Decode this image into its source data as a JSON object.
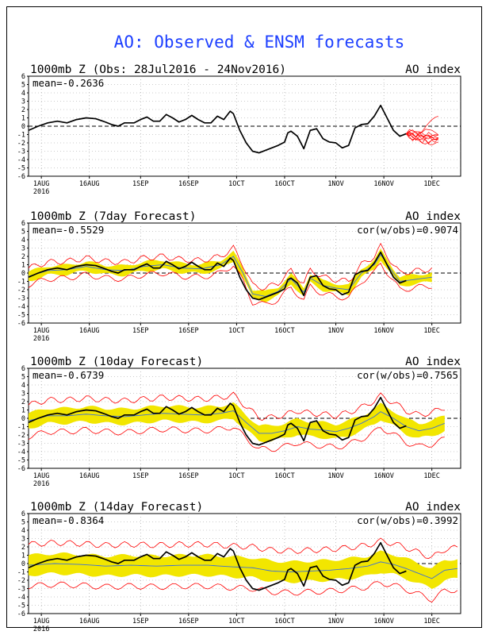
{
  "title": "AO: Observed & ENSM forecasts",
  "colors": {
    "title": "#1e40ff",
    "band": "#f2e600",
    "member": "#ff0000",
    "obs": "#000000",
    "mean": "#3b6fd8"
  },
  "x_ticks": [
    {
      "day": 4,
      "label": "1AUG",
      "sub": "2016"
    },
    {
      "day": 19,
      "label": "16AUG"
    },
    {
      "day": 35,
      "label": "1SEP"
    },
    {
      "day": 50,
      "label": "16SEP"
    },
    {
      "day": 65,
      "label": "1OCT"
    },
    {
      "day": 80,
      "label": "16OCT"
    },
    {
      "day": 96,
      "label": "1NOV"
    },
    {
      "day": 111,
      "label": "16NOV"
    },
    {
      "day": 126,
      "label": "1DEC"
    }
  ],
  "chart_data": [
    {
      "type": "line",
      "title": "1000mb Z (Obs: 28Jul2016 - 24Nov2016)",
      "right_label": "AO index",
      "stat": "mean=-0.2636",
      "ylim": [
        -6,
        6
      ],
      "y_ticks": [
        6,
        5,
        4,
        3,
        2,
        1,
        0,
        -1,
        -2,
        -3,
        -4,
        -5,
        -6
      ],
      "observed": [
        [
          0,
          -0.5
        ],
        [
          3,
          0
        ],
        [
          6,
          0.4
        ],
        [
          9,
          0.6
        ],
        [
          12,
          0.4
        ],
        [
          15,
          0.8
        ],
        [
          18,
          1.0
        ],
        [
          21,
          0.9
        ],
        [
          24,
          0.5
        ],
        [
          26,
          0.2
        ],
        [
          28,
          0.0
        ],
        [
          30,
          0.4
        ],
        [
          33,
          0.4
        ],
        [
          35,
          0.8
        ],
        [
          37,
          1.1
        ],
        [
          39,
          0.6
        ],
        [
          41,
          0.6
        ],
        [
          43,
          1.4
        ],
        [
          45,
          1.0
        ],
        [
          47,
          0.5
        ],
        [
          49,
          0.8
        ],
        [
          51,
          1.3
        ],
        [
          53,
          0.8
        ],
        [
          55,
          0.4
        ],
        [
          57,
          0.4
        ],
        [
          59,
          1.2
        ],
        [
          61,
          0.8
        ],
        [
          63,
          1.8
        ],
        [
          64,
          1.5
        ],
        [
          66,
          -0.5
        ],
        [
          68,
          -2
        ],
        [
          70,
          -3.0
        ],
        [
          72,
          -3.2
        ],
        [
          74,
          -2.9
        ],
        [
          76,
          -2.6
        ],
        [
          78,
          -2.3
        ],
        [
          80,
          -1.9
        ],
        [
          81,
          -0.8
        ],
        [
          82,
          -0.6
        ],
        [
          84,
          -1.2
        ],
        [
          86,
          -2.7
        ],
        [
          88,
          -0.5
        ],
        [
          90,
          -0.3
        ],
        [
          92,
          -1.5
        ],
        [
          94,
          -1.9
        ],
        [
          96,
          -2.0
        ],
        [
          98,
          -2.6
        ],
        [
          100,
          -2.3
        ],
        [
          102,
          -0.2
        ],
        [
          104,
          0.2
        ],
        [
          106,
          0.3
        ],
        [
          108,
          1.2
        ],
        [
          110,
          2.5
        ],
        [
          112,
          1.0
        ],
        [
          114,
          -0.5
        ],
        [
          116,
          -1.2
        ],
        [
          118,
          -0.9
        ]
      ],
      "members": 10,
      "members_start": [
        118,
        -0.9
      ],
      "members_end_day": 128,
      "members_spread": [
        -3.8,
        2.0
      ]
    },
    {
      "type": "line",
      "title": "1000mb Z (7day Forecast)",
      "right_label": "AO index",
      "stat": "mean=-0.5529",
      "cor": "cor(w/obs)=0.9074",
      "ylim": [
        -6,
        6
      ],
      "y_ticks": [
        6,
        5,
        4,
        3,
        2,
        1,
        0,
        -1,
        -2,
        -3,
        -4,
        -5,
        -6
      ],
      "observed": [
        [
          0,
          -0.5
        ],
        [
          3,
          0
        ],
        [
          6,
          0.4
        ],
        [
          9,
          0.6
        ],
        [
          12,
          0.4
        ],
        [
          15,
          0.8
        ],
        [
          18,
          1.0
        ],
        [
          21,
          0.9
        ],
        [
          24,
          0.5
        ],
        [
          26,
          0.2
        ],
        [
          28,
          0.0
        ],
        [
          30,
          0.4
        ],
        [
          33,
          0.4
        ],
        [
          35,
          0.8
        ],
        [
          37,
          1.1
        ],
        [
          39,
          0.6
        ],
        [
          41,
          0.6
        ],
        [
          43,
          1.4
        ],
        [
          45,
          1.0
        ],
        [
          47,
          0.5
        ],
        [
          49,
          0.8
        ],
        [
          51,
          1.3
        ],
        [
          53,
          0.8
        ],
        [
          55,
          0.4
        ],
        [
          57,
          0.4
        ],
        [
          59,
          1.2
        ],
        [
          61,
          0.8
        ],
        [
          63,
          1.8
        ],
        [
          64,
          1.5
        ],
        [
          66,
          -0.5
        ],
        [
          68,
          -2
        ],
        [
          70,
          -3.0
        ],
        [
          72,
          -3.2
        ],
        [
          74,
          -2.9
        ],
        [
          76,
          -2.6
        ],
        [
          78,
          -2.3
        ],
        [
          80,
          -1.9
        ],
        [
          81,
          -0.8
        ],
        [
          82,
          -0.6
        ],
        [
          84,
          -1.2
        ],
        [
          86,
          -2.7
        ],
        [
          88,
          -0.5
        ],
        [
          90,
          -0.3
        ],
        [
          92,
          -1.5
        ],
        [
          94,
          -1.9
        ],
        [
          96,
          -2.0
        ],
        [
          98,
          -2.6
        ],
        [
          100,
          -2.3
        ],
        [
          102,
          -0.2
        ],
        [
          104,
          0.2
        ],
        [
          106,
          0.3
        ],
        [
          108,
          1.2
        ],
        [
          110,
          2.5
        ],
        [
          112,
          1.0
        ],
        [
          114,
          -0.5
        ],
        [
          116,
          -1.2
        ],
        [
          118,
          -0.9
        ]
      ],
      "forecast_mean": [
        [
          0,
          -0.4
        ],
        [
          6,
          0.3
        ],
        [
          12,
          0.4
        ],
        [
          18,
          0.8
        ],
        [
          24,
          0.4
        ],
        [
          30,
          0.3
        ],
        [
          36,
          0.8
        ],
        [
          42,
          1.0
        ],
        [
          48,
          0.6
        ],
        [
          54,
          0.5
        ],
        [
          60,
          1.0
        ],
        [
          64,
          2.0
        ],
        [
          67,
          0
        ],
        [
          70,
          -2.5
        ],
        [
          74,
          -2.8
        ],
        [
          78,
          -2.2
        ],
        [
          82,
          -0.7
        ],
        [
          86,
          -2.3
        ],
        [
          88,
          -0.6
        ],
        [
          92,
          -1.5
        ],
        [
          96,
          -1.8
        ],
        [
          100,
          -2.0
        ],
        [
          104,
          0
        ],
        [
          108,
          1
        ],
        [
          110,
          2.2
        ],
        [
          114,
          0
        ],
        [
          116,
          -1.0
        ],
        [
          120,
          -0.8
        ],
        [
          126,
          -0.5
        ]
      ],
      "band_halfwidth": 0.55,
      "member_halfwidth": 1.0,
      "forecast_end_day": 126
    },
    {
      "type": "line",
      "title": "1000mb Z (10day Forecast)",
      "right_label": "AO index",
      "stat": "mean=-0.6739",
      "cor": "cor(w/obs)=0.7565",
      "ylim": [
        -6,
        6
      ],
      "y_ticks": [
        6,
        5,
        4,
        3,
        2,
        1,
        0,
        -1,
        -2,
        -3,
        -4,
        -5,
        -6
      ],
      "observed": [
        [
          0,
          -0.5
        ],
        [
          3,
          0
        ],
        [
          6,
          0.4
        ],
        [
          9,
          0.6
        ],
        [
          12,
          0.4
        ],
        [
          15,
          0.8
        ],
        [
          18,
          1.0
        ],
        [
          21,
          0.9
        ],
        [
          24,
          0.5
        ],
        [
          26,
          0.2
        ],
        [
          28,
          0.0
        ],
        [
          30,
          0.4
        ],
        [
          33,
          0.4
        ],
        [
          35,
          0.8
        ],
        [
          37,
          1.1
        ],
        [
          39,
          0.6
        ],
        [
          41,
          0.6
        ],
        [
          43,
          1.4
        ],
        [
          45,
          1.0
        ],
        [
          47,
          0.5
        ],
        [
          49,
          0.8
        ],
        [
          51,
          1.3
        ],
        [
          53,
          0.8
        ],
        [
          55,
          0.4
        ],
        [
          57,
          0.4
        ],
        [
          59,
          1.2
        ],
        [
          61,
          0.8
        ],
        [
          63,
          1.8
        ],
        [
          64,
          1.5
        ],
        [
          66,
          -0.5
        ],
        [
          68,
          -2
        ],
        [
          70,
          -3.0
        ],
        [
          72,
          -3.2
        ],
        [
          74,
          -2.9
        ],
        [
          76,
          -2.6
        ],
        [
          78,
          -2.3
        ],
        [
          80,
          -1.9
        ],
        [
          81,
          -0.8
        ],
        [
          82,
          -0.6
        ],
        [
          84,
          -1.2
        ],
        [
          86,
          -2.7
        ],
        [
          88,
          -0.5
        ],
        [
          90,
          -0.3
        ],
        [
          92,
          -1.5
        ],
        [
          94,
          -1.9
        ],
        [
          96,
          -2.0
        ],
        [
          98,
          -2.6
        ],
        [
          100,
          -2.3
        ],
        [
          102,
          -0.2
        ],
        [
          104,
          0.2
        ],
        [
          106,
          0.3
        ],
        [
          108,
          1.2
        ],
        [
          110,
          2.5
        ],
        [
          112,
          1.0
        ],
        [
          114,
          -0.5
        ],
        [
          116,
          -1.2
        ],
        [
          118,
          -0.9
        ]
      ],
      "forecast_mean": [
        [
          0,
          -0.3
        ],
        [
          6,
          0.3
        ],
        [
          12,
          0.3
        ],
        [
          18,
          0.5
        ],
        [
          24,
          0.3
        ],
        [
          30,
          0.2
        ],
        [
          36,
          0.4
        ],
        [
          42,
          0.6
        ],
        [
          48,
          0.5
        ],
        [
          54,
          0.4
        ],
        [
          60,
          0.6
        ],
        [
          64,
          0.9
        ],
        [
          68,
          -0.5
        ],
        [
          72,
          -1.8
        ],
        [
          76,
          -1.8
        ],
        [
          80,
          -1.5
        ],
        [
          84,
          -1.0
        ],
        [
          88,
          -1.3
        ],
        [
          92,
          -1.4
        ],
        [
          96,
          -1.6
        ],
        [
          100,
          -1.2
        ],
        [
          104,
          -0.6
        ],
        [
          108,
          0.2
        ],
        [
          110,
          0.8
        ],
        [
          114,
          0.0
        ],
        [
          118,
          -1.0
        ],
        [
          122,
          -1.5
        ],
        [
          126,
          -1.2
        ],
        [
          130,
          -0.6
        ]
      ],
      "band_halfwidth": 0.9,
      "member_halfwidth": 1.9,
      "forecast_end_day": 130
    },
    {
      "type": "line",
      "title": "1000mb Z (14day Forecast)",
      "right_label": "AO index",
      "stat": "mean=-0.8364",
      "cor": "cor(w/obs)=0.3992",
      "ylim": [
        -6,
        6
      ],
      "y_ticks": [
        6,
        5,
        4,
        3,
        2,
        1,
        0,
        -1,
        -2,
        -3,
        -4,
        -5,
        -6
      ],
      "observed": [
        [
          0,
          -0.5
        ],
        [
          3,
          0
        ],
        [
          6,
          0.4
        ],
        [
          9,
          0.6
        ],
        [
          12,
          0.4
        ],
        [
          15,
          0.8
        ],
        [
          18,
          1.0
        ],
        [
          21,
          0.9
        ],
        [
          24,
          0.5
        ],
        [
          26,
          0.2
        ],
        [
          28,
          0.0
        ],
        [
          30,
          0.4
        ],
        [
          33,
          0.4
        ],
        [
          35,
          0.8
        ],
        [
          37,
          1.1
        ],
        [
          39,
          0.6
        ],
        [
          41,
          0.6
        ],
        [
          43,
          1.4
        ],
        [
          45,
          1.0
        ],
        [
          47,
          0.5
        ],
        [
          49,
          0.8
        ],
        [
          51,
          1.3
        ],
        [
          53,
          0.8
        ],
        [
          55,
          0.4
        ],
        [
          57,
          0.4
        ],
        [
          59,
          1.2
        ],
        [
          61,
          0.8
        ],
        [
          63,
          1.8
        ],
        [
          64,
          1.5
        ],
        [
          66,
          -0.5
        ],
        [
          68,
          -2
        ],
        [
          70,
          -3.0
        ],
        [
          72,
          -3.2
        ],
        [
          74,
          -2.9
        ],
        [
          76,
          -2.6
        ],
        [
          78,
          -2.3
        ],
        [
          80,
          -1.9
        ],
        [
          81,
          -0.8
        ],
        [
          82,
          -0.6
        ],
        [
          84,
          -1.2
        ],
        [
          86,
          -2.7
        ],
        [
          88,
          -0.5
        ],
        [
          90,
          -0.3
        ],
        [
          92,
          -1.5
        ],
        [
          94,
          -1.9
        ],
        [
          96,
          -2.0
        ],
        [
          98,
          -2.6
        ],
        [
          100,
          -2.3
        ],
        [
          102,
          -0.2
        ],
        [
          104,
          0.2
        ],
        [
          106,
          0.3
        ],
        [
          108,
          1.2
        ],
        [
          110,
          2.5
        ],
        [
          112,
          1.0
        ],
        [
          114,
          -0.5
        ],
        [
          116,
          -1.2
        ],
        [
          118,
          -0.9
        ]
      ],
      "forecast_mean": [
        [
          0,
          -0.2
        ],
        [
          8,
          0.0
        ],
        [
          16,
          -0.1
        ],
        [
          24,
          -0.3
        ],
        [
          32,
          -0.2
        ],
        [
          40,
          -0.3
        ],
        [
          48,
          -0.2
        ],
        [
          56,
          -0.2
        ],
        [
          64,
          -0.4
        ],
        [
          70,
          -0.5
        ],
        [
          76,
          -0.9
        ],
        [
          82,
          -1.0
        ],
        [
          88,
          -0.9
        ],
        [
          94,
          -0.8
        ],
        [
          100,
          -0.6
        ],
        [
          106,
          -0.3
        ],
        [
          110,
          0.2
        ],
        [
          114,
          -0.1
        ],
        [
          118,
          -0.6
        ],
        [
          122,
          -1.2
        ],
        [
          126,
          -1.8
        ],
        [
          130,
          -0.8
        ],
        [
          134,
          -0.6
        ]
      ],
      "band_halfwidth": 1.2,
      "member_halfwidth": 2.5,
      "forecast_end_day": 134
    }
  ]
}
